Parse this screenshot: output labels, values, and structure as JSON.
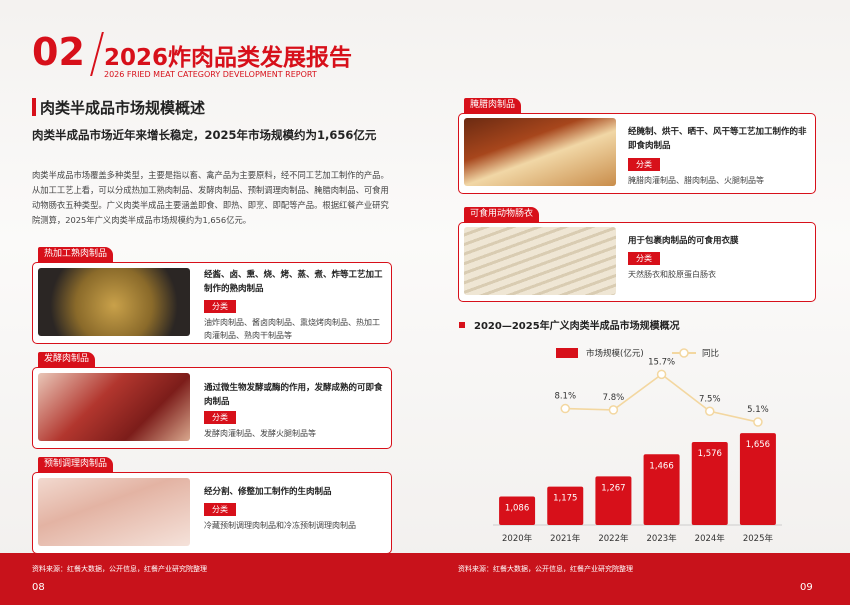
{
  "header": {
    "number": "02",
    "title": "2026炸肉品类发展报告",
    "subtitle": "2026 FRIED MEAT CATEGORY DEVELOPMENT REPORT"
  },
  "section": {
    "title": "肉类半成品市场规模概述",
    "lead": "肉类半成品市场近年来增长稳定，2025年市场规模约为1,656亿元",
    "body": "肉类半成品市场覆盖多种类型，主要是指以畜、禽产品为主要原料，经不同工艺加工制作的产品。从加工工艺上看，可以分成热加工熟肉制品、发酵肉制品、预制调理肉制品、腌腊肉制品、可食用动物肠衣五种类型。广义肉类半成品主要涵盖即食、即热、即烹、即配等产品。根据红餐产业研究院测算，2025年广义肉类半成品市场规模约为1,656亿元。"
  },
  "cards": [
    {
      "tag": "热加工熟肉制品",
      "desc": "经酱、卤、熏、烧、烤、蒸、煮、炸等工艺加工制作的熟肉制品",
      "class_label": "分类",
      "items": "油炸肉制品、酱卤肉制品、熏烧烤肉制品、热加工肉灌制品、熟肉干制品等"
    },
    {
      "tag": "发酵肉制品",
      "desc": "通过微生物发酵或酶的作用，发酵成熟的可即食肉制品",
      "class_label": "分类",
      "items": "发酵肉灌制品、发酵火腿制品等"
    },
    {
      "tag": "预制调理肉制品",
      "desc": "经分割、修整加工制作的生肉制品",
      "class_label": "分类",
      "items": "冷藏预制调理肉制品和冷冻预制调理肉制品"
    },
    {
      "tag": "腌腊肉制品",
      "desc": "经腌制、烘干、晒干、风干等工艺加工制作的非即食肉制品",
      "class_label": "分类",
      "items": "腌腊肉灌制品、腊肉制品、火腿制品等"
    },
    {
      "tag": "可食用动物肠衣",
      "desc": "用于包裹肉制品的可食用衣膜",
      "class_label": "分类",
      "items": "天然肠衣和胶原蛋白肠衣"
    }
  ],
  "chart_data": {
    "type": "bar-line",
    "title": "2020—2025年广义肉类半成品市场规模概况",
    "categories": [
      "2020年",
      "2021年",
      "2022年",
      "2023年",
      "2024年",
      "2025年"
    ],
    "series": [
      {
        "name": "市场规模(亿元)",
        "color": "#d7101a",
        "values": [
          1086,
          1175,
          1267,
          1466,
          1576,
          1656
        ],
        "value_labels": [
          "1,086",
          "1,175",
          "1,267",
          "1,466",
          "1,576",
          "1,656"
        ]
      },
      {
        "name": "同比",
        "color": "#f3d7a0",
        "axis": "y2",
        "values": [
          null,
          8.1,
          7.8,
          15.7,
          7.5,
          5.1
        ],
        "value_labels": [
          null,
          "8.1%",
          "7.8%",
          "15.7%",
          "7.5%",
          "5.1%"
        ]
      }
    ],
    "ylim": [
      830,
      1900
    ],
    "y2lim": [
      0,
      20
    ]
  },
  "footer": {
    "source_left": "资料来源：红餐大数据，公开信息，红餐产业研究院整理",
    "page_left": "08",
    "source_right": "资料来源：红餐大数据，公开信息，红餐产业研究院整理",
    "page_right": "09"
  }
}
